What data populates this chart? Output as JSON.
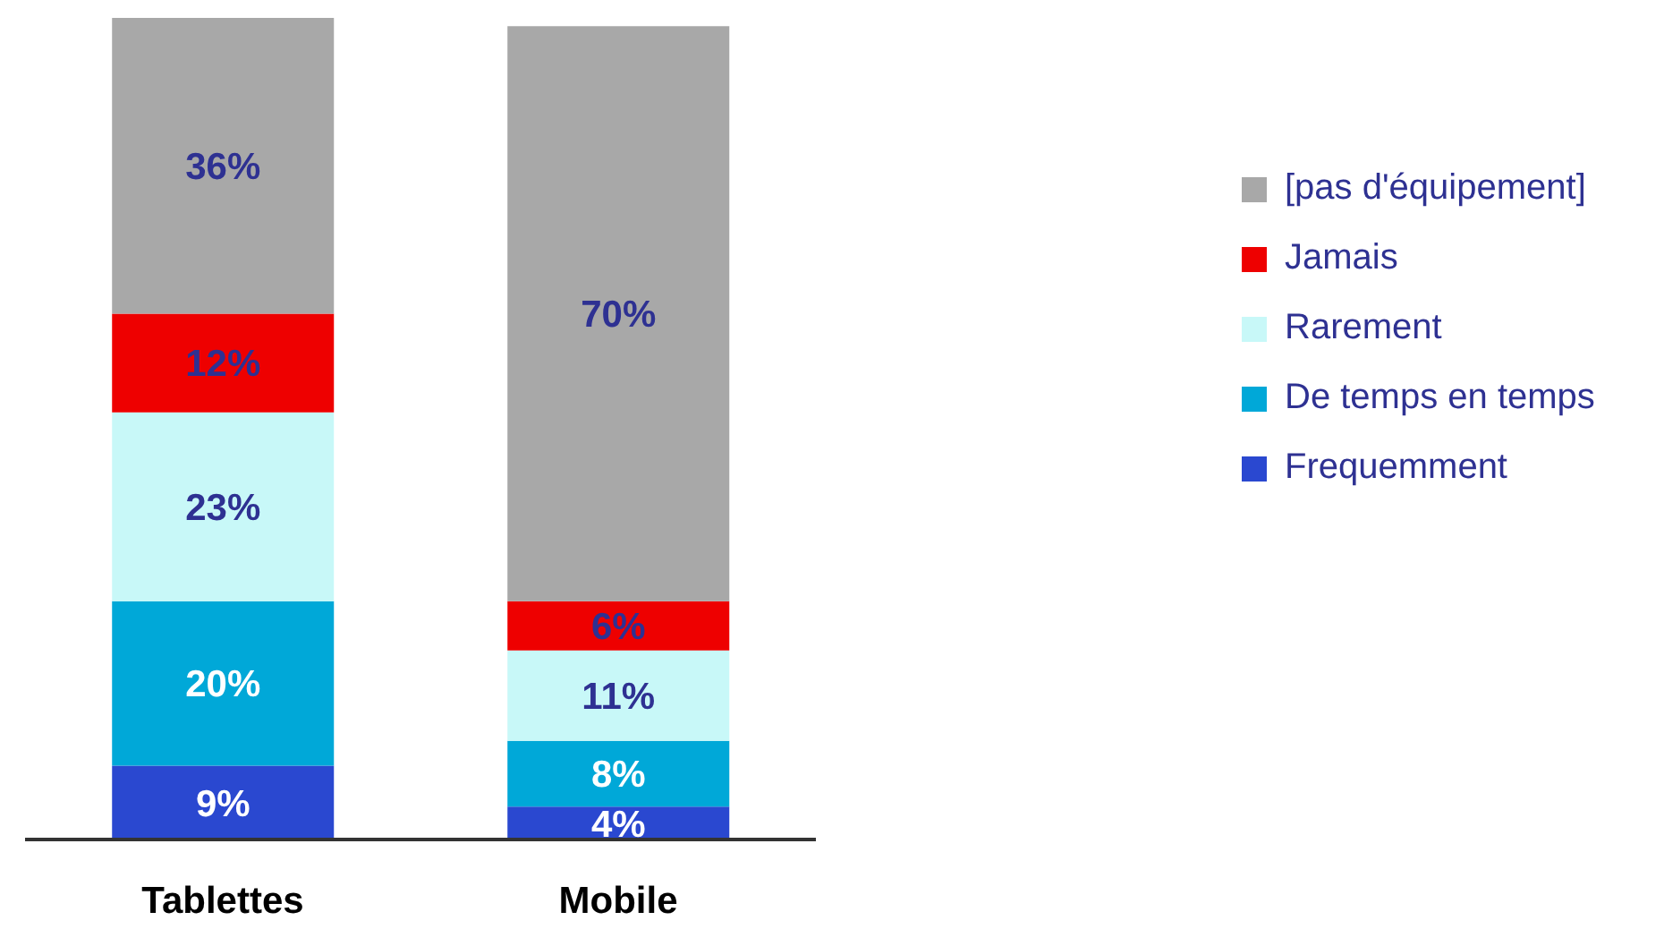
{
  "chart_data": {
    "type": "bar",
    "stacked": true,
    "categories": [
      "Tablettes",
      "Mobile"
    ],
    "series": [
      {
        "name": "Frequemment",
        "color": "#2a48d0",
        "values": [
          9,
          4
        ],
        "value_labels": [
          "9%",
          "4%"
        ]
      },
      {
        "name": "De temps en temps",
        "color": "#00a8d8",
        "values": [
          20,
          8
        ],
        "value_labels": [
          "20%",
          "8%"
        ]
      },
      {
        "name": "Rarement",
        "color": "#c8f8f8",
        "values": [
          23,
          11
        ],
        "value_labels": [
          "23%",
          "11%"
        ]
      },
      {
        "name": "Jamais",
        "color": "#ee0000",
        "values": [
          12,
          6
        ],
        "value_labels": [
          "12%",
          "6%"
        ]
      },
      {
        "name": "[pas d'équipement]",
        "color": "#a8a8a8",
        "values": [
          36,
          70
        ],
        "value_labels": [
          "36%",
          "70%"
        ]
      }
    ],
    "legend": "right",
    "grid": false
  }
}
